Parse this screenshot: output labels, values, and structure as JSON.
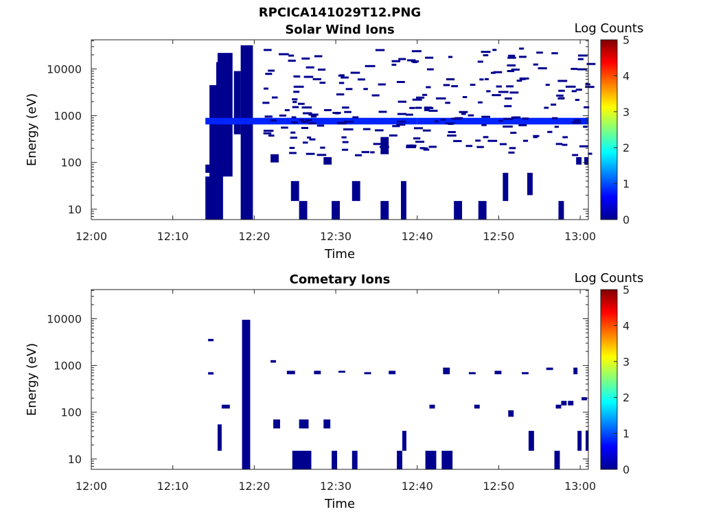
{
  "figure": {
    "title": "RPCICA141029T12.PNG"
  },
  "colormap": {
    "name": "jet",
    "stops": [
      "#00008f",
      "#0000ff",
      "#00ffff",
      "#ffff00",
      "#ff0000",
      "#800000"
    ]
  },
  "chart_data": [
    {
      "type": "heatmap",
      "title": "Solar Wind Ions",
      "xlabel": "Time",
      "ylabel": "Energy (eV)",
      "yscale": "log",
      "xlim": [
        "12:00",
        "13:01"
      ],
      "ylim": [
        6,
        42000
      ],
      "xticks": [
        "12:00",
        "12:10",
        "12:20",
        "12:30",
        "12:40",
        "12:50",
        "13:00"
      ],
      "yticks": [
        "10",
        "100",
        "1000",
        "10000"
      ],
      "grid": false,
      "colorbar": {
        "label": "Log Counts",
        "range": [
          0,
          5
        ],
        "ticks": [
          "0",
          "1",
          "2",
          "3",
          "4",
          "5"
        ]
      },
      "cells": [
        {
          "t0": "12:14:00",
          "t1": "12:14:40",
          "e0": 6,
          "e1": 50,
          "v": 0
        },
        {
          "t0": "12:14:00",
          "t1": "12:14:40",
          "e0": 60,
          "e1": 90,
          "v": 0
        },
        {
          "t0": "12:14:30",
          "t1": "12:15:20",
          "e0": 6,
          "e1": 4500,
          "v": 0
        },
        {
          "t0": "12:15:20",
          "t1": "12:16:10",
          "e0": 6,
          "e1": 14000,
          "v": 0
        },
        {
          "t0": "12:15:30",
          "t1": "12:17:20",
          "e0": 50,
          "e1": 22000,
          "v": 0
        },
        {
          "t0": "12:17:30",
          "t1": "12:18:20",
          "e0": 400,
          "e1": 9000,
          "v": 0
        },
        {
          "t0": "12:18:20",
          "t1": "12:19:50",
          "e0": 6,
          "e1": 32000,
          "v": 0
        },
        {
          "t0": "12:14:00",
          "t1": "12:40:00",
          "e0": 650,
          "e1": 900,
          "v": 0.8
        },
        {
          "t0": "12:40:00",
          "t1": "13:01:00",
          "e0": 650,
          "e1": 900,
          "v": 0.8
        },
        {
          "t0": "12:22:00",
          "t1": "12:23:00",
          "e0": 100,
          "e1": 150,
          "v": 0
        },
        {
          "t0": "12:24:30",
          "t1": "12:25:30",
          "e0": 15,
          "e1": 40,
          "v": 0
        },
        {
          "t0": "12:25:30",
          "t1": "12:26:30",
          "e0": 6,
          "e1": 15,
          "v": 0
        },
        {
          "t0": "12:28:30",
          "t1": "12:29:30",
          "e0": 90,
          "e1": 130,
          "v": 0
        },
        {
          "t0": "12:29:30",
          "t1": "12:30:30",
          "e0": 6,
          "e1": 15,
          "v": 0
        },
        {
          "t0": "12:32:00",
          "t1": "12:33:00",
          "e0": 15,
          "e1": 40,
          "v": 0
        },
        {
          "t0": "12:35:30",
          "t1": "12:36:30",
          "e0": 6,
          "e1": 15,
          "v": 0
        },
        {
          "t0": "12:35:30",
          "t1": "12:36:30",
          "e0": 150,
          "e1": 350,
          "v": 0
        },
        {
          "t0": "12:38:00",
          "t1": "12:38:40",
          "e0": 6,
          "e1": 40,
          "v": 0
        },
        {
          "t0": "12:44:30",
          "t1": "12:45:30",
          "e0": 6,
          "e1": 15,
          "v": 0
        },
        {
          "t0": "12:47:30",
          "t1": "12:48:30",
          "e0": 6,
          "e1": 15,
          "v": 0
        },
        {
          "t0": "12:50:30",
          "t1": "12:51:10",
          "e0": 15,
          "e1": 60,
          "v": 0
        },
        {
          "t0": "12:53:30",
          "t1": "12:54:10",
          "e0": 20,
          "e1": 60,
          "v": 0
        },
        {
          "t0": "12:57:20",
          "t1": "12:58:00",
          "e0": 6,
          "e1": 15,
          "v": 0
        },
        {
          "t0": "12:59:30",
          "t1": "13:00:10",
          "e0": 90,
          "e1": 130,
          "v": 0
        },
        {
          "t0": "13:00:30",
          "t1": "13:01:00",
          "e0": 90,
          "e1": 130,
          "v": 0
        }
      ],
      "scatter_cells": {
        "t_range": [
          "12:21:00",
          "13:01:00"
        ],
        "e_range": [
          150,
          30000
        ],
        "v": 0
      }
    },
    {
      "type": "heatmap",
      "title": "Cometary Ions",
      "xlabel": "Time",
      "ylabel": "Energy (eV)",
      "yscale": "log",
      "xlim": [
        "12:00",
        "13:01"
      ],
      "ylim": [
        6,
        42000
      ],
      "xticks": [
        "12:00",
        "12:10",
        "12:20",
        "12:30",
        "12:40",
        "12:50",
        "13:00"
      ],
      "yticks": [
        "10",
        "100",
        "1000",
        "10000"
      ],
      "grid": false,
      "colorbar": {
        "label": "Log Counts",
        "range": [
          0,
          5
        ],
        "ticks": [
          "0",
          "1",
          "2",
          "3",
          "4",
          "5"
        ]
      },
      "cells": [
        {
          "t0": "12:14:20",
          "t1": "12:15:00",
          "e0": 3300,
          "e1": 3700,
          "v": 0
        },
        {
          "t0": "12:14:20",
          "t1": "12:15:00",
          "e0": 640,
          "e1": 720,
          "v": 0
        },
        {
          "t0": "12:15:30",
          "t1": "12:16:00",
          "e0": 15,
          "e1": 55,
          "v": 0
        },
        {
          "t0": "12:16:00",
          "t1": "12:17:00",
          "e0": 120,
          "e1": 145,
          "v": 0
        },
        {
          "t0": "12:18:30",
          "t1": "12:19:30",
          "e0": 6,
          "e1": 9500,
          "v": 0
        },
        {
          "t0": "12:22:00",
          "t1": "12:22:40",
          "e0": 1150,
          "e1": 1300,
          "v": 0
        },
        {
          "t0": "12:22:20",
          "t1": "12:23:10",
          "e0": 45,
          "e1": 70,
          "v": 0
        },
        {
          "t0": "12:24:00",
          "t1": "12:25:00",
          "e0": 650,
          "e1": 770,
          "v": 0
        },
        {
          "t0": "12:24:40",
          "t1": "12:27:00",
          "e0": 6,
          "e1": 15,
          "v": 0
        },
        {
          "t0": "12:25:30",
          "t1": "12:26:40",
          "e0": 45,
          "e1": 70,
          "v": 0
        },
        {
          "t0": "12:27:20",
          "t1": "12:28:10",
          "e0": 650,
          "e1": 770,
          "v": 0
        },
        {
          "t0": "12:28:30",
          "t1": "12:29:20",
          "e0": 45,
          "e1": 70,
          "v": 0
        },
        {
          "t0": "12:29:30",
          "t1": "12:30:10",
          "e0": 6,
          "e1": 15,
          "v": 0
        },
        {
          "t0": "12:30:20",
          "t1": "12:31:10",
          "e0": 700,
          "e1": 770,
          "v": 0
        },
        {
          "t0": "12:32:00",
          "t1": "12:32:40",
          "e0": 6,
          "e1": 15,
          "v": 0
        },
        {
          "t0": "12:33:30",
          "t1": "12:34:20",
          "e0": 650,
          "e1": 720,
          "v": 0
        },
        {
          "t0": "12:36:30",
          "t1": "12:37:20",
          "e0": 650,
          "e1": 770,
          "v": 0
        },
        {
          "t0": "12:37:30",
          "t1": "12:38:10",
          "e0": 6,
          "e1": 15,
          "v": 0
        },
        {
          "t0": "12:38:10",
          "t1": "12:38:40",
          "e0": 15,
          "e1": 40,
          "v": 0
        },
        {
          "t0": "12:41:00",
          "t1": "12:42:20",
          "e0": 6,
          "e1": 15,
          "v": 0
        },
        {
          "t0": "12:41:30",
          "t1": "12:42:10",
          "e0": 120,
          "e1": 145,
          "v": 0
        },
        {
          "t0": "12:43:00",
          "t1": "12:44:20",
          "e0": 6,
          "e1": 15,
          "v": 0
        },
        {
          "t0": "12:43:10",
          "t1": "12:44:00",
          "e0": 650,
          "e1": 900,
          "v": 0
        },
        {
          "t0": "12:46:20",
          "t1": "12:47:10",
          "e0": 650,
          "e1": 720,
          "v": 0
        },
        {
          "t0": "12:47:00",
          "t1": "12:47:40",
          "e0": 120,
          "e1": 145,
          "v": 0
        },
        {
          "t0": "12:49:30",
          "t1": "12:50:20",
          "e0": 650,
          "e1": 770,
          "v": 0
        },
        {
          "t0": "12:51:10",
          "t1": "12:51:50",
          "e0": 80,
          "e1": 110,
          "v": 0
        },
        {
          "t0": "12:52:50",
          "t1": "12:53:40",
          "e0": 650,
          "e1": 720,
          "v": 0
        },
        {
          "t0": "12:53:40",
          "t1": "12:54:20",
          "e0": 15,
          "e1": 40,
          "v": 0
        },
        {
          "t0": "12:55:50",
          "t1": "12:56:40",
          "e0": 800,
          "e1": 900,
          "v": 0
        },
        {
          "t0": "12:56:50",
          "t1": "12:57:30",
          "e0": 6,
          "e1": 15,
          "v": 0
        },
        {
          "t0": "12:57:00",
          "t1": "12:57:40",
          "e0": 120,
          "e1": 145,
          "v": 0
        },
        {
          "t0": "12:57:40",
          "t1": "12:58:20",
          "e0": 140,
          "e1": 175,
          "v": 0
        },
        {
          "t0": "12:58:30",
          "t1": "12:59:10",
          "e0": 140,
          "e1": 175,
          "v": 0
        },
        {
          "t0": "12:59:10",
          "t1": "12:59:40",
          "e0": 650,
          "e1": 900,
          "v": 0
        },
        {
          "t0": "12:59:40",
          "t1": "13:00:10",
          "e0": 15,
          "e1": 40,
          "v": 0
        },
        {
          "t0": "13:00:10",
          "t1": "13:00:50",
          "e0": 180,
          "e1": 210,
          "v": 0
        },
        {
          "t0": "13:00:40",
          "t1": "13:01:00",
          "e0": 15,
          "e1": 40,
          "v": 0
        }
      ]
    }
  ]
}
